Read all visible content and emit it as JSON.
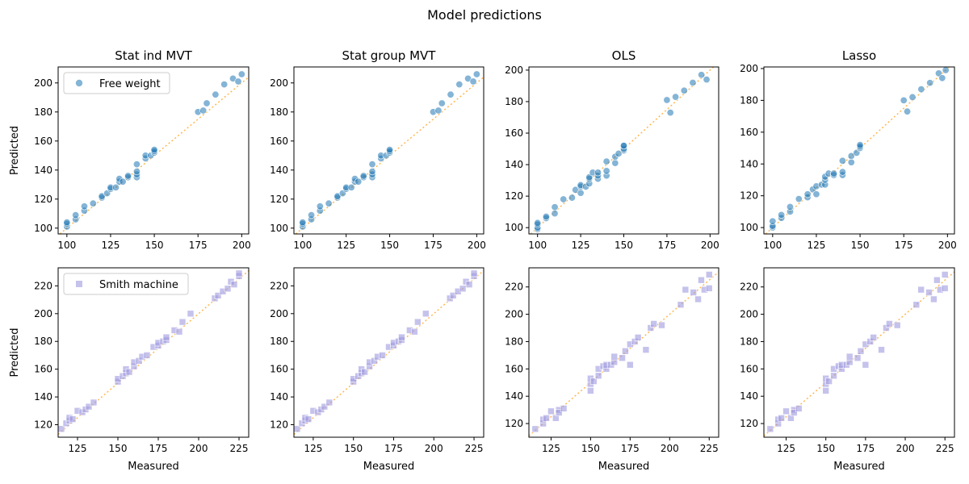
{
  "figure": {
    "suptitle": "Model predictions"
  },
  "chart_data": [
    {
      "type": "scatter",
      "title": "Stat ind MVT",
      "xlabel": "",
      "ylabel": "Predicted",
      "xlim": [
        95,
        204
      ],
      "ylim": [
        96,
        211
      ],
      "xticks": [
        100,
        125,
        150,
        175,
        200
      ],
      "yticks": [
        100,
        120,
        140,
        160,
        180,
        200
      ],
      "grid": false,
      "legend": {
        "position": "upper-left",
        "label": "Free weight",
        "marker": "circle"
      },
      "reference_line": "y = x (dotted, orange)",
      "series": [
        {
          "name": "Free weight",
          "marker": "circle",
          "color": "#1f77b4",
          "x": [
            100,
            100,
            100,
            105,
            105,
            110,
            110,
            115,
            120,
            120,
            123,
            125,
            125,
            128,
            130,
            130,
            132,
            135,
            135,
            140,
            140,
            140,
            140,
            145,
            145,
            148,
            150,
            150,
            150,
            175,
            178,
            180,
            185,
            190,
            195,
            198,
            200
          ],
          "y": [
            101,
            103,
            104,
            106,
            109,
            112,
            115,
            117,
            121,
            122,
            124,
            127,
            128,
            128,
            132,
            134,
            132,
            135,
            136,
            135,
            137,
            139,
            144,
            148,
            150,
            150,
            152,
            153,
            154,
            180,
            181,
            186,
            192,
            199,
            203,
            201,
            206
          ]
        }
      ]
    },
    {
      "type": "scatter",
      "title": "Stat group MVT",
      "xlabel": "",
      "ylabel": "",
      "xlim": [
        95,
        204
      ],
      "ylim": [
        96,
        211
      ],
      "xticks": [
        100,
        125,
        150,
        175,
        200
      ],
      "yticks": [
        100,
        120,
        140,
        160,
        180,
        200
      ],
      "grid": false,
      "reference_line": "y = x (dotted, orange)",
      "series": [
        {
          "name": "Free weight",
          "marker": "circle",
          "color": "#1f77b4",
          "x": [
            100,
            100,
            100,
            105,
            105,
            110,
            110,
            115,
            120,
            120,
            123,
            125,
            125,
            128,
            130,
            130,
            132,
            135,
            135,
            140,
            140,
            140,
            140,
            145,
            145,
            148,
            150,
            150,
            150,
            175,
            178,
            180,
            185,
            190,
            195,
            198,
            200
          ],
          "y": [
            101,
            103,
            104,
            106,
            109,
            112,
            115,
            117,
            121,
            122,
            124,
            127,
            128,
            128,
            132,
            134,
            132,
            135,
            136,
            135,
            137,
            139,
            144,
            148,
            150,
            150,
            152,
            153,
            154,
            180,
            181,
            186,
            192,
            199,
            203,
            201,
            206
          ]
        }
      ]
    },
    {
      "type": "scatter",
      "title": "OLS",
      "xlabel": "",
      "ylabel": "",
      "xlim": [
        95,
        205
      ],
      "ylim": [
        96,
        202
      ],
      "xticks": [
        100,
        125,
        150,
        175,
        200
      ],
      "yticks": [
        100,
        120,
        140,
        160,
        180,
        200
      ],
      "grid": false,
      "reference_line": "y = x (dotted, orange)",
      "series": [
        {
          "name": "Free weight",
          "marker": "circle",
          "color": "#1f77b4",
          "x": [
            100,
            100,
            100,
            100,
            105,
            105,
            110,
            110,
            115,
            120,
            122,
            125,
            125,
            125,
            128,
            130,
            130,
            130,
            132,
            135,
            135,
            135,
            140,
            140,
            140,
            145,
            145,
            147,
            150,
            150,
            150,
            150,
            175,
            177,
            180,
            185,
            190,
            195,
            198
          ],
          "y": [
            99,
            100,
            102,
            103,
            106,
            107,
            109,
            113,
            118,
            119,
            124,
            122,
            126,
            127,
            126,
            128,
            131,
            132,
            135,
            131,
            133,
            135,
            133,
            136,
            142,
            141,
            145,
            147,
            149,
            150,
            152,
            152,
            181,
            173,
            183,
            187,
            192,
            197,
            194
          ]
        }
      ]
    },
    {
      "type": "scatter",
      "title": "Lasso",
      "xlabel": "",
      "ylabel": "",
      "xlim": [
        95,
        204
      ],
      "ylim": [
        96,
        201
      ],
      "xticks": [
        100,
        125,
        150,
        175,
        200
      ],
      "yticks": [
        100,
        120,
        140,
        160,
        180,
        200
      ],
      "grid": false,
      "reference_line": "y = x (dotted, orange)",
      "series": [
        {
          "name": "Free weight",
          "marker": "circle",
          "color": "#1f77b4",
          "x": [
            100,
            100,
            100,
            105,
            105,
            110,
            110,
            115,
            120,
            120,
            123,
            125,
            125,
            128,
            130,
            130,
            130,
            132,
            135,
            135,
            140,
            140,
            140,
            145,
            145,
            148,
            150,
            150,
            150,
            175,
            177,
            180,
            185,
            190,
            195,
            197,
            199
          ],
          "y": [
            100,
            101,
            104,
            106,
            108,
            110,
            113,
            118,
            119,
            121,
            124,
            121,
            126,
            127,
            127,
            130,
            132,
            134,
            133,
            134,
            133,
            135,
            142,
            141,
            145,
            147,
            150,
            151,
            152,
            180,
            173,
            182,
            187,
            191,
            197,
            194,
            199
          ]
        }
      ]
    },
    {
      "type": "scatter",
      "title": "",
      "xlabel": "Measured",
      "ylabel": "Predicted",
      "xlim": [
        113,
        231
      ],
      "ylim": [
        111,
        233
      ],
      "xticks": [
        125,
        150,
        175,
        200,
        225
      ],
      "yticks": [
        120,
        140,
        160,
        180,
        200,
        220
      ],
      "grid": false,
      "legend": {
        "position": "upper-left",
        "label": "Smith machine",
        "marker": "square"
      },
      "reference_line": "y = x (dotted, orange)",
      "series": [
        {
          "name": "Smith machine",
          "marker": "square",
          "color": "#9e9ae0",
          "x": [
            115,
            118,
            120,
            120,
            122,
            125,
            128,
            130,
            132,
            135,
            150,
            150,
            153,
            155,
            155,
            157,
            160,
            160,
            163,
            165,
            168,
            172,
            175,
            175,
            178,
            180,
            180,
            185,
            188,
            190,
            195,
            210,
            212,
            215,
            218,
            220,
            222,
            225,
            225
          ],
          "y": [
            117,
            121,
            123,
            125,
            124,
            130,
            129,
            131,
            133,
            136,
            151,
            153,
            155,
            157,
            160,
            158,
            162,
            165,
            166,
            169,
            170,
            176,
            177,
            179,
            180,
            181,
            183,
            188,
            187,
            194,
            200,
            211,
            213,
            216,
            218,
            223,
            221,
            227,
            229
          ]
        }
      ]
    },
    {
      "type": "scatter",
      "title": "",
      "xlabel": "Measured",
      "ylabel": "",
      "xlim": [
        113,
        231
      ],
      "ylim": [
        111,
        233
      ],
      "xticks": [
        125,
        150,
        175,
        200,
        225
      ],
      "yticks": [
        120,
        140,
        160,
        180,
        200,
        220
      ],
      "grid": false,
      "reference_line": "y = x (dotted, orange)",
      "series": [
        {
          "name": "Smith machine",
          "marker": "square",
          "color": "#9e9ae0",
          "x": [
            115,
            118,
            120,
            120,
            122,
            125,
            128,
            130,
            132,
            135,
            150,
            150,
            153,
            155,
            155,
            157,
            160,
            160,
            163,
            165,
            168,
            172,
            175,
            175,
            178,
            180,
            180,
            185,
            188,
            190,
            195,
            210,
            212,
            215,
            218,
            220,
            222,
            225,
            225
          ],
          "y": [
            117,
            121,
            123,
            125,
            124,
            130,
            129,
            131,
            133,
            136,
            151,
            153,
            155,
            157,
            160,
            158,
            162,
            165,
            166,
            169,
            170,
            176,
            177,
            179,
            180,
            181,
            183,
            188,
            187,
            194,
            200,
            211,
            213,
            216,
            218,
            223,
            221,
            227,
            229
          ]
        }
      ]
    },
    {
      "type": "scatter",
      "title": "",
      "xlabel": "Measured",
      "ylabel": "",
      "xlim": [
        111,
        231
      ],
      "ylim": [
        110,
        234
      ],
      "xticks": [
        125,
        150,
        175,
        200,
        225
      ],
      "yticks": [
        120,
        140,
        160,
        180,
        200,
        220
      ],
      "grid": false,
      "reference_line": "y = x (dotted, orange)",
      "series": [
        {
          "name": "Smith machine",
          "marker": "square",
          "color": "#9e9ae0",
          "x": [
            115,
            120,
            120,
            122,
            125,
            128,
            130,
            130,
            133,
            150,
            150,
            150,
            152,
            155,
            155,
            158,
            160,
            160,
            163,
            165,
            165,
            170,
            172,
            175,
            175,
            178,
            180,
            185,
            188,
            190,
            195,
            207,
            210,
            215,
            218,
            220,
            222,
            225,
            225
          ],
          "y": [
            116,
            120,
            123,
            124,
            129,
            124,
            130,
            128,
            131,
            144,
            149,
            153,
            151,
            155,
            160,
            162,
            160,
            163,
            163,
            165,
            169,
            168,
            173,
            163,
            178,
            180,
            183,
            174,
            190,
            193,
            192,
            207,
            218,
            216,
            211,
            225,
            218,
            229,
            219
          ]
        }
      ]
    },
    {
      "type": "scatter",
      "title": "",
      "xlabel": "Measured",
      "ylabel": "",
      "xlim": [
        111,
        231
      ],
      "ylim": [
        110,
        234
      ],
      "xticks": [
        125,
        150,
        175,
        200,
        225
      ],
      "yticks": [
        120,
        140,
        160,
        180,
        200,
        220
      ],
      "grid": false,
      "reference_line": "y = x (dotted, orange)",
      "series": [
        {
          "name": "Smith machine",
          "marker": "square",
          "color": "#9e9ae0",
          "x": [
            115,
            120,
            120,
            122,
            125,
            128,
            130,
            130,
            133,
            150,
            150,
            150,
            152,
            155,
            155,
            158,
            160,
            160,
            163,
            165,
            165,
            170,
            172,
            175,
            175,
            178,
            180,
            185,
            188,
            190,
            195,
            207,
            210,
            215,
            218,
            220,
            222,
            225,
            225
          ],
          "y": [
            116,
            120,
            123,
            124,
            129,
            124,
            130,
            128,
            131,
            144,
            149,
            153,
            151,
            155,
            160,
            162,
            160,
            163,
            163,
            165,
            169,
            168,
            173,
            163,
            178,
            180,
            183,
            174,
            190,
            193,
            192,
            207,
            218,
            216,
            211,
            225,
            218,
            229,
            219
          ]
        }
      ]
    }
  ]
}
